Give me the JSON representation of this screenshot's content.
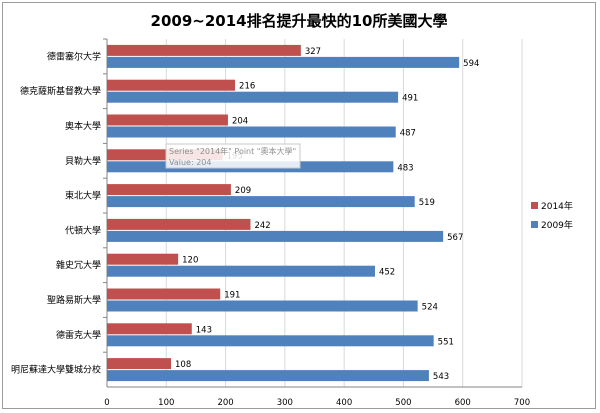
{
  "chart_data": {
    "type": "bar",
    "orientation": "horizontal",
    "title": "2009~2014排名提升最快的10所美國大學",
    "categories": [
      "德雷塞尔大学",
      "德克薩斯基督教大學",
      "奧本大學",
      "貝勒大學",
      "東北大學",
      "代頓大學",
      "雜史冗大學",
      "聖路易斯大學",
      "德雷克大學",
      "明尼蘇達大學雙城分校"
    ],
    "series": [
      {
        "name": "2014年",
        "color": "#c0504d",
        "values": [
          327,
          216,
          204,
          195,
          209,
          242,
          120,
          191,
          143,
          108
        ]
      },
      {
        "name": "2009年",
        "color": "#4f81bd",
        "values": [
          594,
          491,
          487,
          483,
          519,
          567,
          452,
          524,
          551,
          543
        ]
      }
    ],
    "xlim": [
      0,
      700
    ],
    "xticks": [
      0,
      100,
      200,
      300,
      400,
      500,
      600,
      700
    ],
    "grid": true,
    "legend_position": "right",
    "tooltip": {
      "line1": "Series \"2014年\" Point \"奧本大學\"",
      "line2": "Value: 204"
    }
  }
}
